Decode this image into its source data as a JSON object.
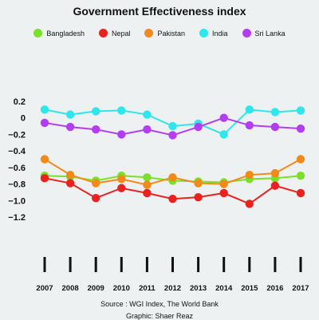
{
  "chart_data": {
    "type": "line",
    "title": "Government Effectiveness index",
    "xlabel": "",
    "ylabel": "",
    "categories": [
      "2007",
      "2008",
      "2009",
      "2010",
      "2011",
      "2012",
      "2013",
      "2014",
      "2015",
      "2016",
      "2017"
    ],
    "ylim": [
      -1.2,
      0.2
    ],
    "yticks": [
      "0.2",
      "0",
      "−0.2",
      "−0.4",
      "−0.6",
      "−0.8",
      "−1.0",
      "−1.2"
    ],
    "ytick_values": [
      0.2,
      0,
      -0.2,
      -0.4,
      -0.6,
      -0.8,
      -1.0,
      -1.2
    ],
    "grid": false,
    "legend_position": "top",
    "series": [
      {
        "name": "Bangladesh",
        "color": "#7be02a",
        "values": [
          -0.7,
          -0.71,
          -0.76,
          -0.7,
          -0.72,
          -0.76,
          -0.77,
          -0.78,
          -0.74,
          -0.73,
          -0.7
        ]
      },
      {
        "name": "Nepal",
        "color": "#e8221f",
        "values": [
          -0.73,
          -0.79,
          -0.97,
          -0.85,
          -0.91,
          -0.98,
          -0.96,
          -0.91,
          -1.04,
          -0.82,
          -0.91
        ]
      },
      {
        "name": "Pakistan",
        "color": "#f28a1b",
        "values": [
          -0.5,
          -0.69,
          -0.79,
          -0.74,
          -0.81,
          -0.72,
          -0.79,
          -0.8,
          -0.69,
          -0.67,
          -0.5
        ]
      },
      {
        "name": "India",
        "color": "#2fe6ea",
        "values": [
          0.1,
          0.04,
          0.08,
          0.09,
          0.04,
          -0.1,
          -0.07,
          -0.2,
          0.1,
          0.07,
          0.09
        ]
      },
      {
        "name": "Sri Lanka",
        "color": "#b33ef0",
        "values": [
          -0.06,
          -0.11,
          -0.14,
          -0.2,
          -0.14,
          -0.21,
          -0.11,
          0.0,
          -0.09,
          -0.11,
          -0.13
        ]
      }
    ]
  },
  "footer": {
    "source": "Source : WGI Index, The World Bank",
    "graphic": "Graphic: Shaer Reaz"
  }
}
